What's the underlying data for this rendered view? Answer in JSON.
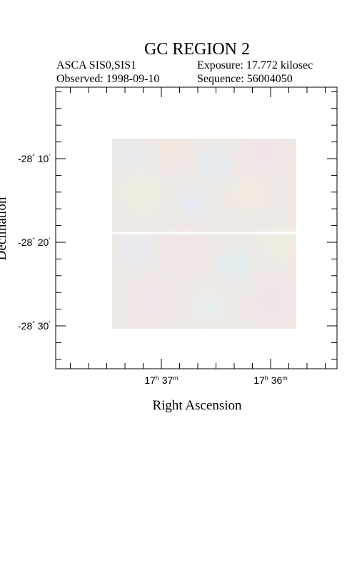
{
  "title": "GC REGION 2",
  "info": {
    "instrument": "ASCA SIS0,SIS1",
    "exposure": "Exposure: 17.772 kilosec",
    "observed": "Observed: 1998-09-10",
    "sequence": "Sequence: 56004050"
  },
  "axes": {
    "x_label": "Right Ascension",
    "y_label": "Declination",
    "x_ticks": [
      [
        "17",
        "h",
        " 37",
        "m"
      ],
      [
        "17",
        "h",
        " 36",
        "m"
      ]
    ],
    "y_ticks": [
      [
        "-28",
        "°",
        " 10",
        "′"
      ],
      [
        "-28",
        "°",
        " 20",
        "′"
      ],
      [
        "-28",
        "°",
        " 30",
        "′"
      ]
    ]
  }
}
